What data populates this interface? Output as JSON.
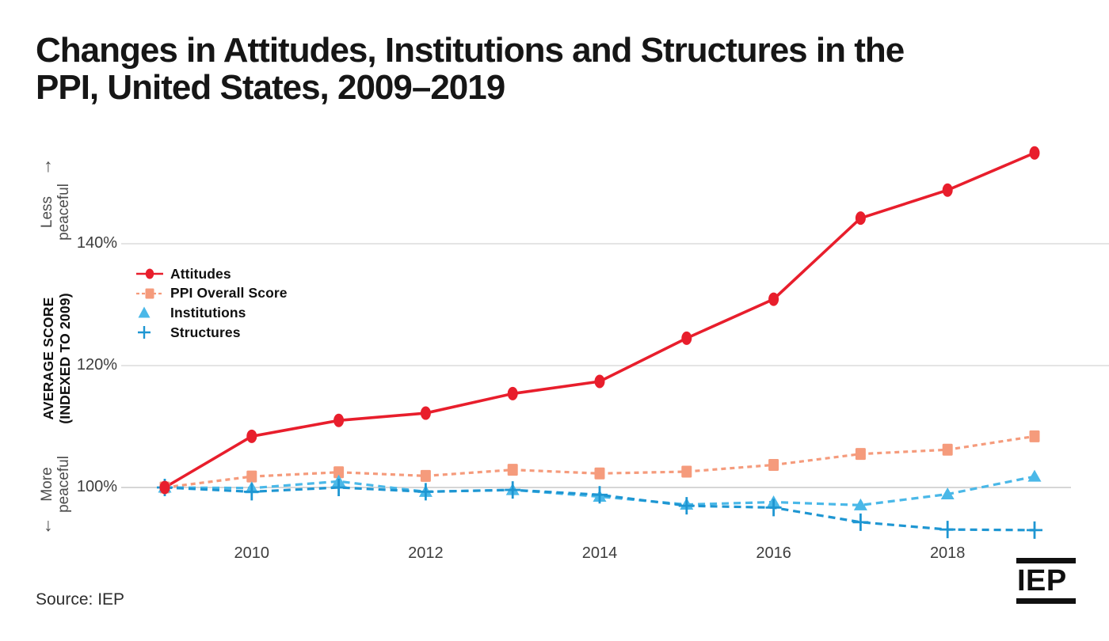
{
  "page": {
    "title_line1": "Changes in Attitudes, Institutions and Structures in the",
    "title_line2": "PPI, United States, 2009–2019",
    "source": "Source: IEP",
    "logo_text": "IEP"
  },
  "y_axis": {
    "axis_label_line1": "AVERAGE SCORE",
    "axis_label_line2": "(INDEXED TO 2009)",
    "less_peaceful_line1": "Less",
    "less_peaceful_line2": "peaceful",
    "more_peaceful_line1": "More",
    "more_peaceful_line2": "peaceful",
    "up_arrow": "↑",
    "down_arrow": "↓"
  },
  "chart_data": {
    "type": "line",
    "title": "Changes in Attitudes, Institutions and Structures in the PPI, United States, 2009–2019",
    "xlabel": "",
    "ylabel": "AVERAGE SCORE (INDEXED TO 2009)",
    "x": [
      2009,
      2010,
      2011,
      2012,
      2013,
      2014,
      2015,
      2016,
      2017,
      2018,
      2019
    ],
    "x_ticks": [
      {
        "value": 2010,
        "label": "2010"
      },
      {
        "value": 2012,
        "label": "2012"
      },
      {
        "value": 2014,
        "label": "2014"
      },
      {
        "value": 2016,
        "label": "2016"
      },
      {
        "value": 2018,
        "label": "2018"
      }
    ],
    "y_ticks": [
      {
        "value": 140,
        "label": "140%"
      },
      {
        "value": 120,
        "label": "120%"
      },
      {
        "value": 100,
        "label": "100%"
      }
    ],
    "ylim": [
      91,
      157
    ],
    "grid": "horizontal-only",
    "legend_position": "inside-upper-left",
    "annotations": [
      "Less peaceful (up)",
      "More peaceful (down)"
    ],
    "series": [
      {
        "name": "Attitudes",
        "color": "#e81e2c",
        "line": "solid",
        "marker": "circle",
        "values": [
          100,
          108.4,
          111.0,
          112.2,
          115.4,
          117.4,
          124.5,
          130.9,
          144.2,
          148.8,
          154.9
        ]
      },
      {
        "name": "PPI Overall Score",
        "color": "#f59b7c",
        "line": "dashed",
        "marker": "square",
        "values": [
          100,
          101.8,
          102.5,
          101.9,
          102.9,
          102.3,
          102.6,
          103.7,
          105.5,
          106.2,
          108.4
        ]
      },
      {
        "name": "Institutions",
        "color": "#4ab8e8",
        "line": "dashed",
        "marker": "triangle",
        "values": [
          100,
          99.9,
          101.0,
          99.3,
          99.6,
          98.5,
          97.2,
          97.6,
          97.1,
          98.9,
          101.8
        ]
      },
      {
        "name": "Structures",
        "color": "#1e96d2",
        "line": "dashed",
        "marker": "plus",
        "values": [
          100,
          99.3,
          100.0,
          99.3,
          99.6,
          98.8,
          97.0,
          96.7,
          94.3,
          93.1,
          93.0
        ]
      }
    ],
    "source": "Source: IEP"
  }
}
